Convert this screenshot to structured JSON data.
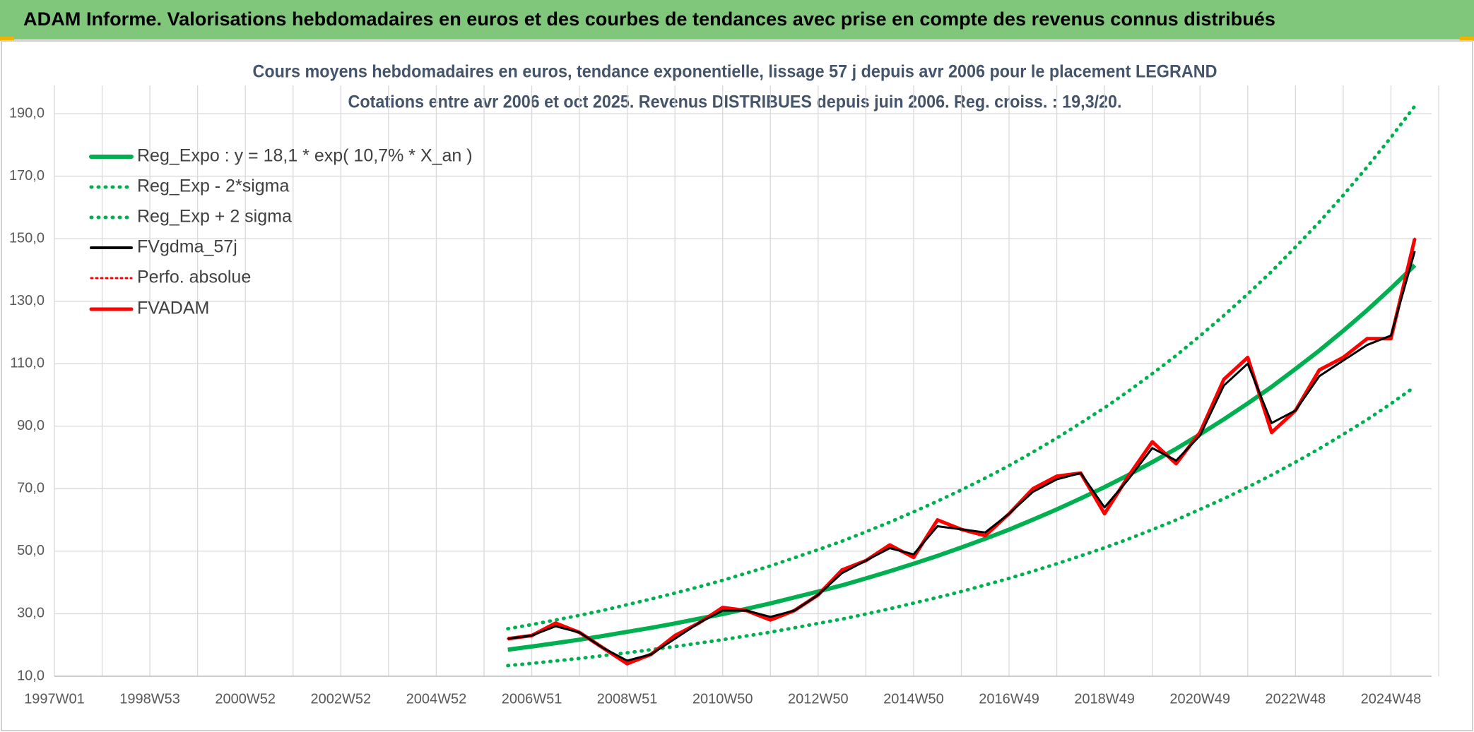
{
  "header": {
    "title": "ADAM Informe. Valorisations hebdomadaires en euros et des courbes de tendances avec prise en compte des revenus connus distribués"
  },
  "chart_data": {
    "type": "line",
    "title": "Cours moyens hebdomadaires en euros, tendance exponentielle, lissage 57 j depuis avr 2006 pour le placement LEGRAND",
    "subtitle": "Cotations entre avr 2006 et oct 2025. Revenus DISTRIBUES depuis juin 2006. Reg. croiss. : 19,3/20.",
    "categories": [
      "1997W01",
      null,
      null,
      null,
      "1998W53",
      null,
      null,
      null,
      "2000W52",
      null,
      null,
      null,
      "2002W52",
      null,
      null,
      null,
      "2004W52",
      null,
      null,
      null,
      "2006W51",
      null,
      null,
      null,
      "2008W51",
      null,
      null,
      null,
      "2010W50",
      null,
      null,
      null,
      "2012W50",
      null,
      null,
      null,
      "2014W50",
      null,
      null,
      null,
      "2016W49",
      null,
      null,
      null,
      "2018W49",
      null,
      null,
      null,
      "2020W49",
      null,
      null,
      null,
      "2022W48",
      null,
      null,
      null,
      "2024W48",
      null,
      null
    ],
    "ylim": [
      10,
      190
    ],
    "yticks": [
      {
        "value": 10,
        "label": "10,0"
      },
      {
        "value": 30,
        "label": "30,0"
      },
      {
        "value": 50,
        "label": "50,0"
      },
      {
        "value": 70,
        "label": "70,0"
      },
      {
        "value": 90,
        "label": "90,0"
      },
      {
        "value": 110,
        "label": "110,0"
      },
      {
        "value": 130,
        "label": "130,0"
      },
      {
        "value": 150,
        "label": "150,0"
      },
      {
        "value": 170,
        "label": "170,0"
      },
      {
        "value": 190,
        "label": "190,0"
      }
    ],
    "grid": true,
    "legend": "top-left",
    "series": [
      {
        "name": "Reg_Expo : y = 18,1 * exp( 10,7% *  X_an )",
        "color": "#00b050",
        "style": "solid",
        "values": [
          null,
          null,
          null,
          null,
          null,
          null,
          null,
          null,
          null,
          null,
          null,
          null,
          null,
          null,
          null,
          null,
          null,
          null,
          null,
          18.5,
          19.5,
          20.6,
          21.7,
          22.9,
          24.2,
          25.5,
          26.9,
          28.4,
          29.9,
          31.6,
          33.3,
          35.2,
          37.1,
          39.1,
          41.3,
          43.6,
          46.0,
          48.5,
          51.2,
          54.0,
          56.9,
          60.1,
          63.4,
          66.9,
          70.5,
          74.4,
          78.5,
          82.8,
          87.4,
          92.2,
          97.3,
          102.6,
          108.3,
          114.2,
          120.5,
          127.1,
          134.1,
          141.5,
          null
        ]
      },
      {
        "name": "Reg_Exp - 2*sigma",
        "color": "#00b050",
        "style": "dotted",
        "values": [
          null,
          null,
          null,
          null,
          null,
          null,
          null,
          null,
          null,
          null,
          null,
          null,
          null,
          null,
          null,
          null,
          null,
          null,
          null,
          13.4,
          14.1,
          14.9,
          15.7,
          16.6,
          17.5,
          18.5,
          19.5,
          20.6,
          21.7,
          22.9,
          24.1,
          25.5,
          26.9,
          28.3,
          29.9,
          31.6,
          33.4,
          35.2,
          37.1,
          39.2,
          41.3,
          43.6,
          46.0,
          48.5,
          51.1,
          53.9,
          56.9,
          60.0,
          63.4,
          66.8,
          70.5,
          74.4,
          78.5,
          82.8,
          87.4,
          92.1,
          97.2,
          102.6,
          null
        ]
      },
      {
        "name": "Reg_Exp + 2 sigma",
        "color": "#00b050",
        "style": "dotted",
        "values": [
          null,
          null,
          null,
          null,
          null,
          null,
          null,
          null,
          null,
          null,
          null,
          null,
          null,
          null,
          null,
          null,
          null,
          null,
          null,
          25.2,
          26.5,
          28.0,
          29.5,
          31.1,
          32.9,
          34.7,
          36.6,
          38.6,
          40.7,
          43.0,
          45.3,
          47.9,
          50.5,
          53.2,
          56.2,
          59.3,
          62.6,
          66.0,
          69.6,
          73.4,
          77.4,
          81.7,
          86.2,
          91.0,
          95.9,
          101.2,
          106.8,
          112.6,
          118.9,
          125.4,
          132.3,
          139.5,
          147.3,
          155.3,
          163.9,
          172.9,
          182.4,
          192.4,
          null
        ]
      },
      {
        "name": "FVgdma_57j",
        "color": "#000000",
        "style": "solid",
        "values": [
          null,
          null,
          null,
          null,
          null,
          null,
          null,
          null,
          null,
          null,
          null,
          null,
          null,
          null,
          null,
          null,
          null,
          null,
          null,
          22,
          23,
          26,
          24,
          19,
          15,
          17,
          22,
          27,
          31,
          31,
          29,
          31,
          36,
          43,
          47,
          51,
          49,
          58,
          57,
          56,
          62,
          69,
          73,
          75,
          64,
          73,
          83,
          79,
          87,
          103,
          110,
          91,
          95,
          106,
          111,
          116,
          119,
          146,
          null
        ]
      },
      {
        "name": "Perfo. absolue",
        "color": "#ff0000",
        "style": "dotted",
        "values": [
          null,
          null,
          null,
          null,
          null,
          null,
          null,
          null,
          null,
          null,
          null,
          null,
          null,
          null,
          null,
          null,
          null,
          null,
          null,
          22,
          23,
          27,
          24,
          19,
          14,
          17,
          23,
          27,
          32,
          31,
          28,
          31,
          36,
          44,
          47,
          52,
          48,
          60,
          57,
          55,
          62,
          70,
          74,
          75,
          62,
          74,
          85,
          78,
          88,
          105,
          112,
          88,
          95,
          108,
          112,
          118,
          118,
          150,
          null
        ]
      },
      {
        "name": "FVADAM",
        "color": "#ff0000",
        "style": "solid",
        "values": [
          null,
          null,
          null,
          null,
          null,
          null,
          null,
          null,
          null,
          null,
          null,
          null,
          null,
          null,
          null,
          null,
          null,
          null,
          null,
          22,
          23,
          27,
          24,
          19,
          14,
          17,
          23,
          27,
          32,
          31,
          28,
          31,
          36,
          44,
          47,
          52,
          48,
          60,
          57,
          55,
          62,
          70,
          74,
          75,
          62,
          74,
          85,
          78,
          88,
          105,
          112,
          88,
          95,
          108,
          112,
          118,
          118,
          150,
          null
        ]
      }
    ]
  }
}
